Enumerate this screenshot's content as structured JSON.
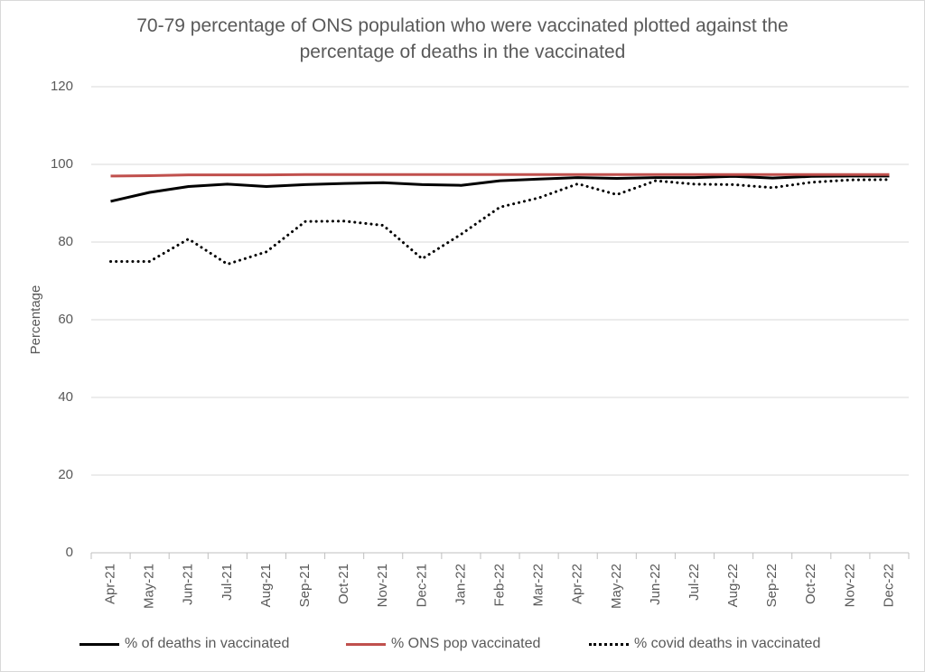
{
  "chart_data": {
    "type": "line",
    "title": [
      "70-79 percentage of ONS population who were vaccinated plotted against the",
      "percentage of deaths in the vaccinated"
    ],
    "xlabel": "",
    "ylabel": "Percentage",
    "ylim": [
      0,
      120
    ],
    "yticks": [
      0,
      20,
      40,
      60,
      80,
      100,
      120
    ],
    "grid": true,
    "legend_position": "bottom",
    "categories": [
      "Apr-21",
      "May-21",
      "Jun-21",
      "Jul-21",
      "Aug-21",
      "Sep-21",
      "Oct-21",
      "Nov-21",
      "Dec-21",
      "Jan-22",
      "Feb-22",
      "Mar-22",
      "Apr-22",
      "May-22",
      "Jun-22",
      "Jul-22",
      "Aug-22",
      "Sep-22",
      "Oct-22",
      "Nov-22",
      "Dec-22"
    ],
    "series": [
      {
        "name": "% of deaths in vaccinated",
        "color": "#000000",
        "style": "solid",
        "values": [
          90.5,
          92.8,
          94.3,
          94.9,
          94.3,
          94.8,
          95.1,
          95.3,
          94.8,
          94.6,
          95.8,
          96.2,
          96.6,
          96.4,
          96.6,
          96.6,
          96.9,
          96.5,
          96.9,
          97.0,
          97.0
        ]
      },
      {
        "name": "% ONS pop vaccinated",
        "color": "#c0504d",
        "style": "solid",
        "values": [
          97.0,
          97.1,
          97.3,
          97.3,
          97.3,
          97.4,
          97.4,
          97.4,
          97.4,
          97.4,
          97.4,
          97.4,
          97.4,
          97.4,
          97.4,
          97.4,
          97.4,
          97.4,
          97.4,
          97.4,
          97.4
        ]
      },
      {
        "name": "% covid deaths in vaccinated",
        "color": "#000000",
        "style": "dotted",
        "values": [
          75.0,
          75.0,
          80.8,
          74.3,
          77.5,
          85.3,
          85.4,
          84.3,
          75.7,
          82.0,
          89.0,
          91.4,
          95.0,
          92.2,
          95.8,
          94.9,
          94.8,
          94.0,
          95.4,
          96.0,
          96.1
        ]
      }
    ]
  }
}
